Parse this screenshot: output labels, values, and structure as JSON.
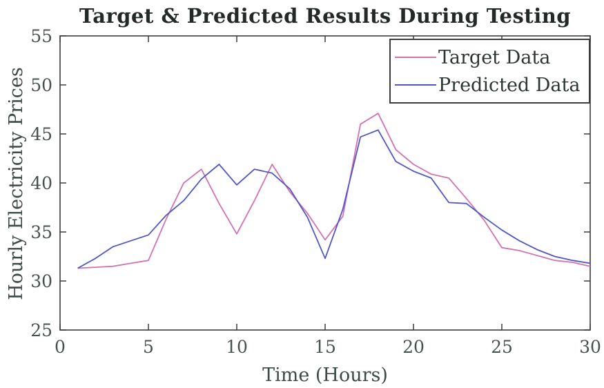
{
  "chart_data": {
    "type": "line",
    "title": "Target & Predicted Results During Testing",
    "xlabel": "Time (Hours)",
    "ylabel": "Hourly Electricity Prices",
    "xlim": [
      0,
      30
    ],
    "ylim": [
      25,
      55
    ],
    "x_ticks": [
      0,
      5,
      10,
      15,
      20,
      25,
      30
    ],
    "y_ticks": [
      25,
      30,
      35,
      40,
      45,
      50,
      55
    ],
    "grid": false,
    "legend_position": "top-right-inside",
    "x": [
      1,
      2,
      3,
      4,
      5,
      6,
      7,
      8,
      9,
      10,
      11,
      12,
      13,
      14,
      15,
      16,
      17,
      18,
      19,
      20,
      21,
      22,
      23,
      24,
      25,
      26,
      27,
      28,
      29,
      30
    ],
    "series": [
      {
        "name": "Target Data",
        "color": "#d173ae",
        "values": [
          31.3,
          31.4,
          31.5,
          31.8,
          32.1,
          36.3,
          40.0,
          41.4,
          37.9,
          34.8,
          38.2,
          41.9,
          39.1,
          36.9,
          34.2,
          36.6,
          46.0,
          47.1,
          43.4,
          41.9,
          40.9,
          40.5,
          38.4,
          36.2,
          33.4,
          33.1,
          32.6,
          32.1,
          31.9,
          31.5
        ]
      },
      {
        "name": "Predicted Data",
        "color": "#4f55c8",
        "values": [
          31.3,
          32.3,
          33.5,
          34.1,
          34.7,
          36.7,
          38.2,
          40.4,
          41.9,
          39.8,
          41.4,
          41.0,
          39.4,
          36.5,
          32.3,
          37.3,
          44.7,
          45.4,
          42.2,
          41.2,
          40.5,
          38.0,
          37.9,
          36.5,
          35.2,
          34.1,
          33.2,
          32.5,
          32.1,
          31.8
        ]
      }
    ],
    "axis_color": "#3b3b3b"
  }
}
